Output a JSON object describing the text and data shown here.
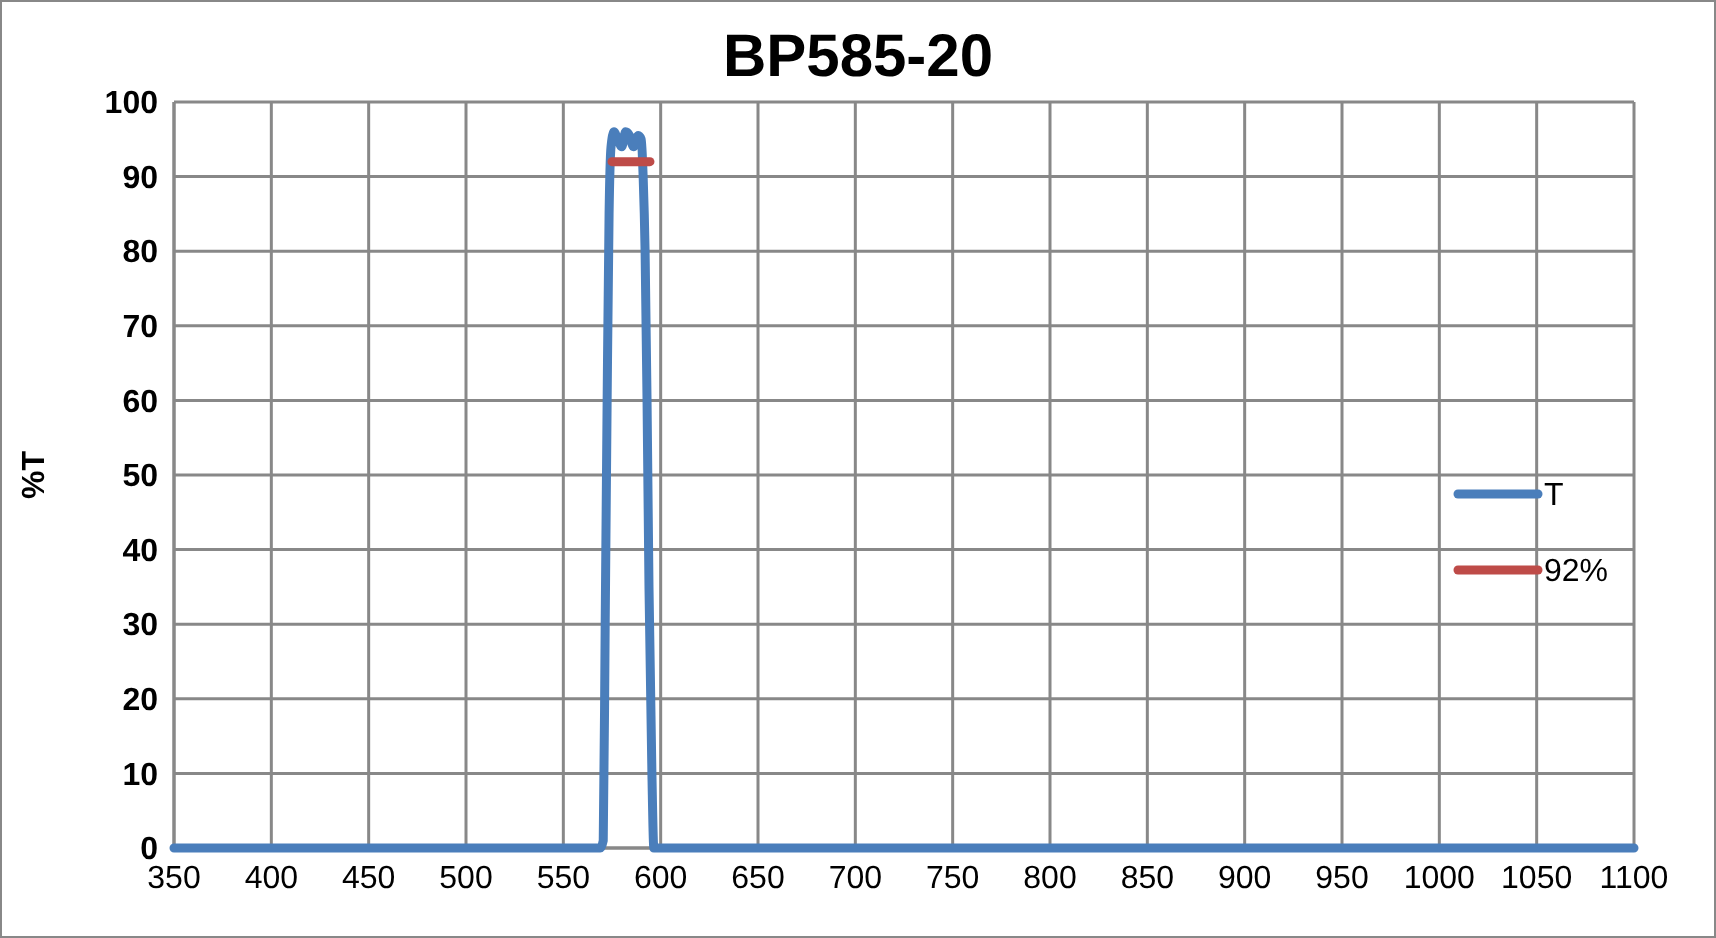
{
  "chart_data": {
    "type": "line",
    "title": "BP585-20",
    "ylabel": "%T",
    "xlim": [
      350,
      1100
    ],
    "xticks": [
      350,
      400,
      450,
      500,
      550,
      600,
      650,
      700,
      750,
      800,
      850,
      900,
      950,
      1000,
      1050,
      1100
    ],
    "ylim": [
      0,
      100
    ],
    "yticks": [
      0,
      10,
      20,
      30,
      40,
      50,
      60,
      70,
      80,
      90,
      100
    ],
    "grid": true,
    "legend": "right",
    "line_style": "solid",
    "series": [
      {
        "name": "T",
        "color": "#4a7ebb",
        "x": [
          350,
          569,
          570.5,
          571.5,
          572.5,
          573.5,
          574.5,
          576,
          578,
          580,
          582,
          584,
          586,
          588.5,
          590,
          591,
          592,
          593,
          594,
          595.5,
          596.5,
          1100
        ],
        "values": [
          0,
          0,
          1,
          30,
          60,
          85,
          94,
          96,
          95,
          94,
          96,
          95.5,
          94,
          95.5,
          95,
          90,
          80,
          60,
          35,
          10,
          0,
          0
        ]
      },
      {
        "name": "92%",
        "color": "#be4b48",
        "x": [
          575,
          594.5
        ],
        "values": [
          92,
          92
        ]
      }
    ]
  }
}
